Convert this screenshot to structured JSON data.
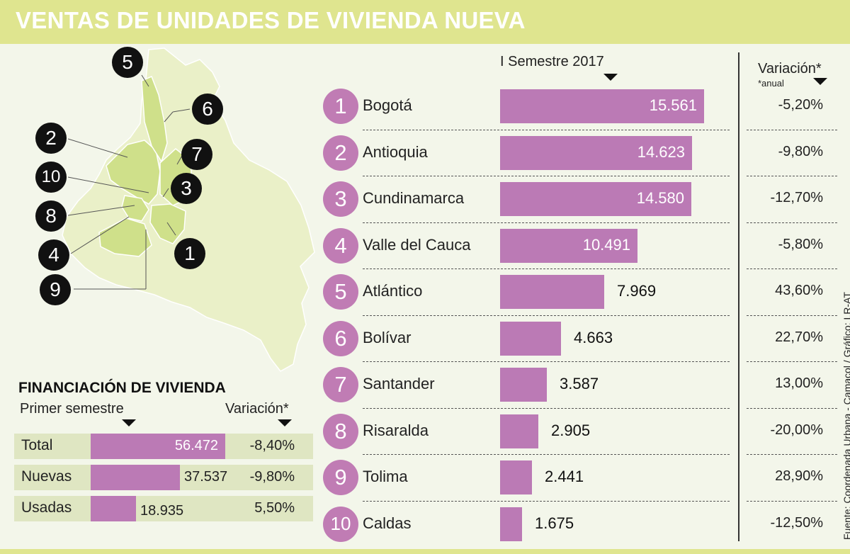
{
  "title": "VENTAS DE UNIDADES DE VIVIENDA NUEVA",
  "headers": {
    "period": "I Semestre 2017",
    "variation": "Variación*",
    "variation_note": "*anual"
  },
  "source": "Fuente: Coordenada Urbana - Camacol / Gráfico: LR-AT",
  "colors": {
    "bar": "#bb7ab5",
    "badge": "#c07cb4",
    "title_band": "#dfe58f",
    "map_highlight": "#cfe08a",
    "map_base": "#eaf0c8"
  },
  "map_badges": [
    "5",
    "6",
    "2",
    "7",
    "10",
    "3",
    "8",
    "4",
    "1",
    "9"
  ],
  "chart_data": [
    {
      "type": "bar",
      "orientation": "horizontal",
      "title": "VENTAS DE UNIDADES DE VIVIENDA NUEVA",
      "series_label": "I Semestre 2017",
      "ranks": [
        "1",
        "2",
        "3",
        "4",
        "5",
        "6",
        "7",
        "8",
        "9",
        "10"
      ],
      "categories": [
        "Bogotá",
        "Antioquia",
        "Cundinamarca",
        "Valle del Cauca",
        "Atlántico",
        "Bolívar",
        "Santander",
        "Risaralda",
        "Tolima",
        "Caldas"
      ],
      "values": [
        15561,
        14623,
        14580,
        10491,
        7969,
        4663,
        3587,
        2905,
        2441,
        1675
      ],
      "value_labels": [
        "15.561",
        "14.623",
        "14.580",
        "10.491",
        "7.969",
        "4.663",
        "3.587",
        "2.905",
        "2.441",
        "1.675"
      ],
      "variation_labels": [
        "-5,20%",
        "-9,80%",
        "-12,70%",
        "-5,80%",
        "43,60%",
        "22,70%",
        "13,00%",
        "-20,00%",
        "28,90%",
        "-12,50%"
      ]
    },
    {
      "type": "bar",
      "orientation": "horizontal",
      "title": "FINANCIACIÓN DE VIVIENDA",
      "series_label": "Primer semestre",
      "variation_header": "Variación*",
      "categories": [
        "Total",
        "Nuevas",
        "Usadas"
      ],
      "values": [
        56472,
        37537,
        18935
      ],
      "value_labels": [
        "56.472",
        "37.537",
        "18.935"
      ],
      "variation_labels": [
        "-8,40%",
        "-9,80%",
        "5,50%"
      ]
    }
  ]
}
